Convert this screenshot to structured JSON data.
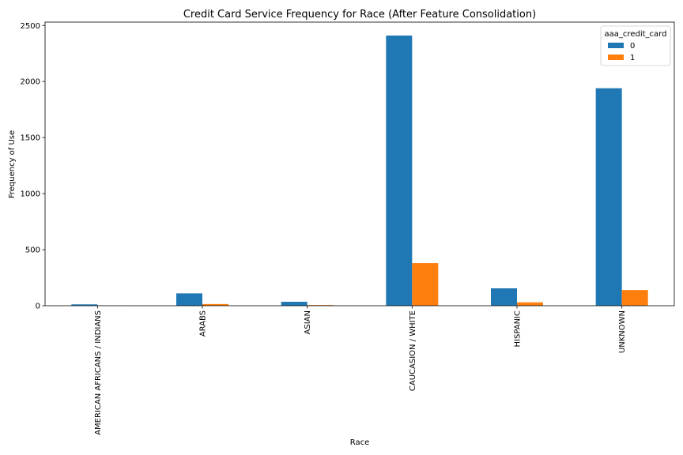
{
  "chart_data": {
    "type": "bar",
    "title": "Credit Card Service Frequency for Race (After Feature Consolidation)",
    "xlabel": "Race",
    "ylabel": "Frequency of Use",
    "categories": [
      "AMERICAN AFRICANS / INDIANS",
      "ARABS",
      "ASIAN",
      "CAUCASION / WHITE",
      "HISPANIC",
      "UNKNOWN"
    ],
    "series": [
      {
        "name": "0",
        "color": "#1f77b4",
        "values": [
          12,
          110,
          35,
          2410,
          155,
          1940
        ]
      },
      {
        "name": "1",
        "color": "#ff7f0e",
        "values": [
          2,
          15,
          6,
          380,
          30,
          140
        ]
      }
    ],
    "ylim": [
      0,
      2530
    ],
    "yticks": [
      0,
      500,
      1000,
      1500,
      2000,
      2500
    ],
    "legend": {
      "title": "aaa_credit_card",
      "placement": "top-right"
    },
    "grid": false
  }
}
